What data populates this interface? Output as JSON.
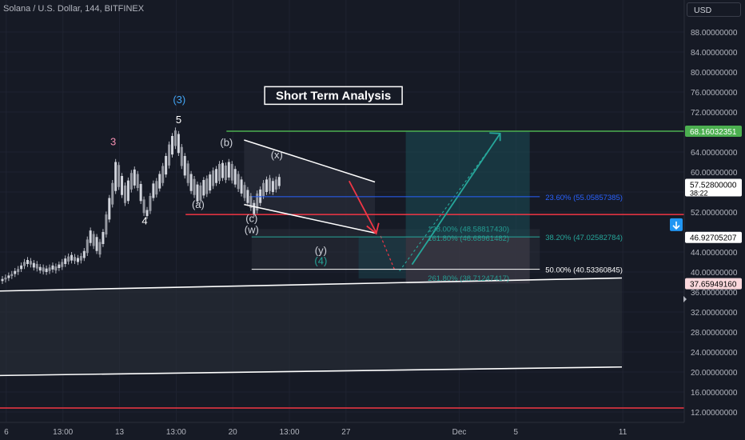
{
  "header": {
    "symbol": "Solana / U.S. Dollar, 144, BITFINEX",
    "currency": "USD"
  },
  "colors": {
    "bg": "#161a25",
    "green": "#4caf50",
    "red": "#f23645",
    "teal": "#26a69a",
    "blue": "#2962ff",
    "white": "#ffffff"
  },
  "chart_data": {
    "type": "candlestick",
    "title": "Short Term Analysis",
    "y_axis": {
      "min": 12,
      "max": 88,
      "ticks": [
        {
          "v": 88,
          "label": "88.00000000"
        },
        {
          "v": 84,
          "label": "84.00000000"
        },
        {
          "v": 80,
          "label": "80.00000000"
        },
        {
          "v": 76,
          "label": "76.00000000"
        },
        {
          "v": 72,
          "label": "72.00000000"
        },
        {
          "v": 64,
          "label": "64.00000000"
        },
        {
          "v": 60,
          "label": "60.00000000"
        },
        {
          "v": 56,
          "label": "56.00000000"
        },
        {
          "v": 52,
          "label": "52.00000000"
        },
        {
          "v": 44,
          "label": "44.00000000"
        },
        {
          "v": 40,
          "label": "40.00000000"
        },
        {
          "v": 36,
          "label": "36.00000000"
        },
        {
          "v": 32,
          "label": "32.00000000"
        },
        {
          "v": 28,
          "label": "28.00000000"
        },
        {
          "v": 24,
          "label": "24.00000000"
        },
        {
          "v": 20,
          "label": "20.00000000"
        },
        {
          "v": 16,
          "label": "16.00000000"
        },
        {
          "v": 12,
          "label": "12.00000000"
        }
      ]
    },
    "x_axis": {
      "ticks": [
        {
          "t": 0.1,
          "label": "6"
        },
        {
          "t": 1.0,
          "label": "13:00"
        },
        {
          "t": 1.9,
          "label": "13"
        },
        {
          "t": 2.8,
          "label": "13:00"
        },
        {
          "t": 3.7,
          "label": "20"
        },
        {
          "t": 4.6,
          "label": "13:00"
        },
        {
          "t": 5.5,
          "label": "27"
        },
        {
          "t": 7.3,
          "label": "Dec"
        },
        {
          "t": 8.2,
          "label": "5"
        },
        {
          "t": 9.9,
          "label": "11"
        }
      ]
    },
    "price_labels": [
      {
        "v": 68.16032351,
        "label": "68.16032351",
        "color": "#4caf50",
        "text": "#ffffff"
      },
      {
        "v": 57.528,
        "label": "57.52800000",
        "sub": "38:22",
        "color": "#ffffff",
        "text": "#000000"
      },
      {
        "v": 46.92705207,
        "label": "46.92705207",
        "color": "#ffffff",
        "text": "#000000"
      },
      {
        "v": 37.6594916,
        "label": "37.65949160",
        "color": "#fbd8dc",
        "text": "#000000"
      }
    ],
    "fib_levels": [
      {
        "label": "23.60% (55.05857385)",
        "v": 55.05857385,
        "color": "#2962ff"
      },
      {
        "label": "38.20% (47.02582784)",
        "v": 47.02582784,
        "color": "#26a69a"
      },
      {
        "label": "50.00% (40.53360845)",
        "v": 40.53360845,
        "color": "#ffffff"
      }
    ],
    "ext_levels": [
      {
        "label": "138.00% (48.58817430)",
        "v": 48.5881743
      },
      {
        "label": "161.80% (46.68961482)",
        "v": 46.68961482
      },
      {
        "label": "261.80% (38.71247417)",
        "v": 38.71247417
      }
    ],
    "horizontal_lines": [
      {
        "name": "target-line",
        "v": 68.16032351,
        "color": "#4caf50"
      },
      {
        "name": "wave4-support-line",
        "v": 51.5,
        "color": "#f23645"
      },
      {
        "name": "low-line",
        "v": 12.8,
        "color": "#f23645"
      }
    ],
    "wave_labels": [
      {
        "text": "(3)",
        "t": 2.85,
        "v": 73.8,
        "color": "#42a5f5"
      },
      {
        "text": "5",
        "t": 2.84,
        "v": 69.8,
        "color": "#ffffff"
      },
      {
        "text": "3",
        "t": 1.8,
        "v": 65.4,
        "color": "#f48fb1"
      },
      {
        "text": "4",
        "t": 2.3,
        "v": 49.5,
        "color": "#ffffff"
      },
      {
        "text": "(b)",
        "t": 3.6,
        "v": 65.2,
        "color": "#d1d4dc"
      },
      {
        "text": "(x)",
        "t": 4.4,
        "v": 62.7,
        "color": "#d1d4dc"
      },
      {
        "text": "(a)",
        "t": 3.15,
        "v": 52.8,
        "color": "#d1d4dc"
      },
      {
        "text": "(c)",
        "t": 4.0,
        "v": 50.0,
        "color": "#d1d4dc"
      },
      {
        "text": "(w)",
        "t": 4.0,
        "v": 47.8,
        "color": "#d1d4dc"
      },
      {
        "text": "(y)",
        "t": 5.1,
        "v": 43.6,
        "color": "#d1d4dc"
      },
      {
        "text": "(4)",
        "t": 5.1,
        "v": 41.5,
        "color": "#26a69a"
      }
    ],
    "candles": [
      [
        0.0,
        38.6,
        38.2
      ],
      [
        0.05,
        38.9,
        38.5
      ],
      [
        0.1,
        39.3,
        38.8
      ],
      [
        0.15,
        39.6,
        39.2
      ],
      [
        0.2,
        40.2,
        39.6
      ],
      [
        0.25,
        40.6,
        40.0
      ],
      [
        0.3,
        41.3,
        40.6
      ],
      [
        0.35,
        42.0,
        41.2
      ],
      [
        0.4,
        42.4,
        41.6
      ],
      [
        0.45,
        42.2,
        41.5
      ],
      [
        0.5,
        41.8,
        40.9
      ],
      [
        0.55,
        41.6,
        40.7
      ],
      [
        0.6,
        41.0,
        40.3
      ],
      [
        0.65,
        40.9,
        40.1
      ],
      [
        0.7,
        40.7,
        40.0
      ],
      [
        0.75,
        40.9,
        40.2
      ],
      [
        0.8,
        41.3,
        40.5
      ],
      [
        0.85,
        41.1,
        40.3
      ],
      [
        0.9,
        41.5,
        40.8
      ],
      [
        0.95,
        42.0,
        41.0
      ],
      [
        1.0,
        42.7,
        41.6
      ],
      [
        1.05,
        43.1,
        42.1
      ],
      [
        1.1,
        43.4,
        42.3
      ],
      [
        1.15,
        43.0,
        42.2
      ],
      [
        1.2,
        42.8,
        42.0
      ],
      [
        1.25,
        43.2,
        42.3
      ],
      [
        1.3,
        44.2,
        42.8
      ],
      [
        1.35,
        46.5,
        43.8
      ],
      [
        1.4,
        48.3,
        45.8
      ],
      [
        1.45,
        47.6,
        45.2
      ],
      [
        1.5,
        47.0,
        44.2
      ],
      [
        1.55,
        46.0,
        43.5
      ],
      [
        1.6,
        48.0,
        45.6
      ],
      [
        1.65,
        51.5,
        47.5
      ],
      [
        1.7,
        54.8,
        50.5
      ],
      [
        1.75,
        57.8,
        53.5
      ],
      [
        1.8,
        62.0,
        56.2
      ],
      [
        1.85,
        61.4,
        57.0
      ],
      [
        1.9,
        59.2,
        55.4
      ],
      [
        1.95,
        57.3,
        53.8
      ],
      [
        2.0,
        58.3,
        54.2
      ],
      [
        2.05,
        59.8,
        56.5
      ],
      [
        2.1,
        60.5,
        57.3
      ],
      [
        2.15,
        59.6,
        56.8
      ],
      [
        2.2,
        57.6,
        54.2
      ],
      [
        2.25,
        54.5,
        51.8
      ],
      [
        2.3,
        52.4,
        51.2
      ],
      [
        2.35,
        55.2,
        52.2
      ],
      [
        2.4,
        57.7,
        54.8
      ],
      [
        2.45,
        58.2,
        55.5
      ],
      [
        2.5,
        59.6,
        56.7
      ],
      [
        2.55,
        61.2,
        57.8
      ],
      [
        2.6,
        63.2,
        59.5
      ],
      [
        2.65,
        65.5,
        61.3
      ],
      [
        2.7,
        67.2,
        63.5
      ],
      [
        2.75,
        68.3,
        65.2
      ],
      [
        2.8,
        67.6,
        63.8
      ],
      [
        2.85,
        65.0,
        61.2
      ],
      [
        2.9,
        63.2,
        59.3
      ],
      [
        2.95,
        61.7,
        57.8
      ],
      [
        3.0,
        59.6,
        56.2
      ],
      [
        3.05,
        58.6,
        55.4
      ],
      [
        3.1,
        57.5,
        54.1
      ],
      [
        3.15,
        57.3,
        54.3
      ],
      [
        3.2,
        58.4,
        55.3
      ],
      [
        3.25,
        58.7,
        55.6
      ],
      [
        3.3,
        59.5,
        56.3
      ],
      [
        3.35,
        60.3,
        57.2
      ],
      [
        3.4,
        60.6,
        57.8
      ],
      [
        3.45,
        61.6,
        58.2
      ],
      [
        3.5,
        61.8,
        58.8
      ],
      [
        3.55,
        61.3,
        58.4
      ],
      [
        3.6,
        62.0,
        58.9
      ],
      [
        3.65,
        61.6,
        58.3
      ],
      [
        3.7,
        60.6,
        57.5
      ],
      [
        3.75,
        59.6,
        56.6
      ],
      [
        3.8,
        58.5,
        55.7
      ],
      [
        3.85,
        57.4,
        54.8
      ],
      [
        3.9,
        56.4,
        53.8
      ],
      [
        3.95,
        55.2,
        52.8
      ],
      [
        4.0,
        53.8,
        51.6
      ],
      [
        4.05,
        55.7,
        52.3
      ],
      [
        4.1,
        56.5,
        53.8
      ],
      [
        4.15,
        57.8,
        55.2
      ],
      [
        4.2,
        58.5,
        56.0
      ],
      [
        4.25,
        58.8,
        56.2
      ],
      [
        4.3,
        58.2,
        56.0
      ],
      [
        4.35,
        58.5,
        56.5
      ],
      [
        4.4,
        59.0,
        57.2
      ]
    ]
  }
}
